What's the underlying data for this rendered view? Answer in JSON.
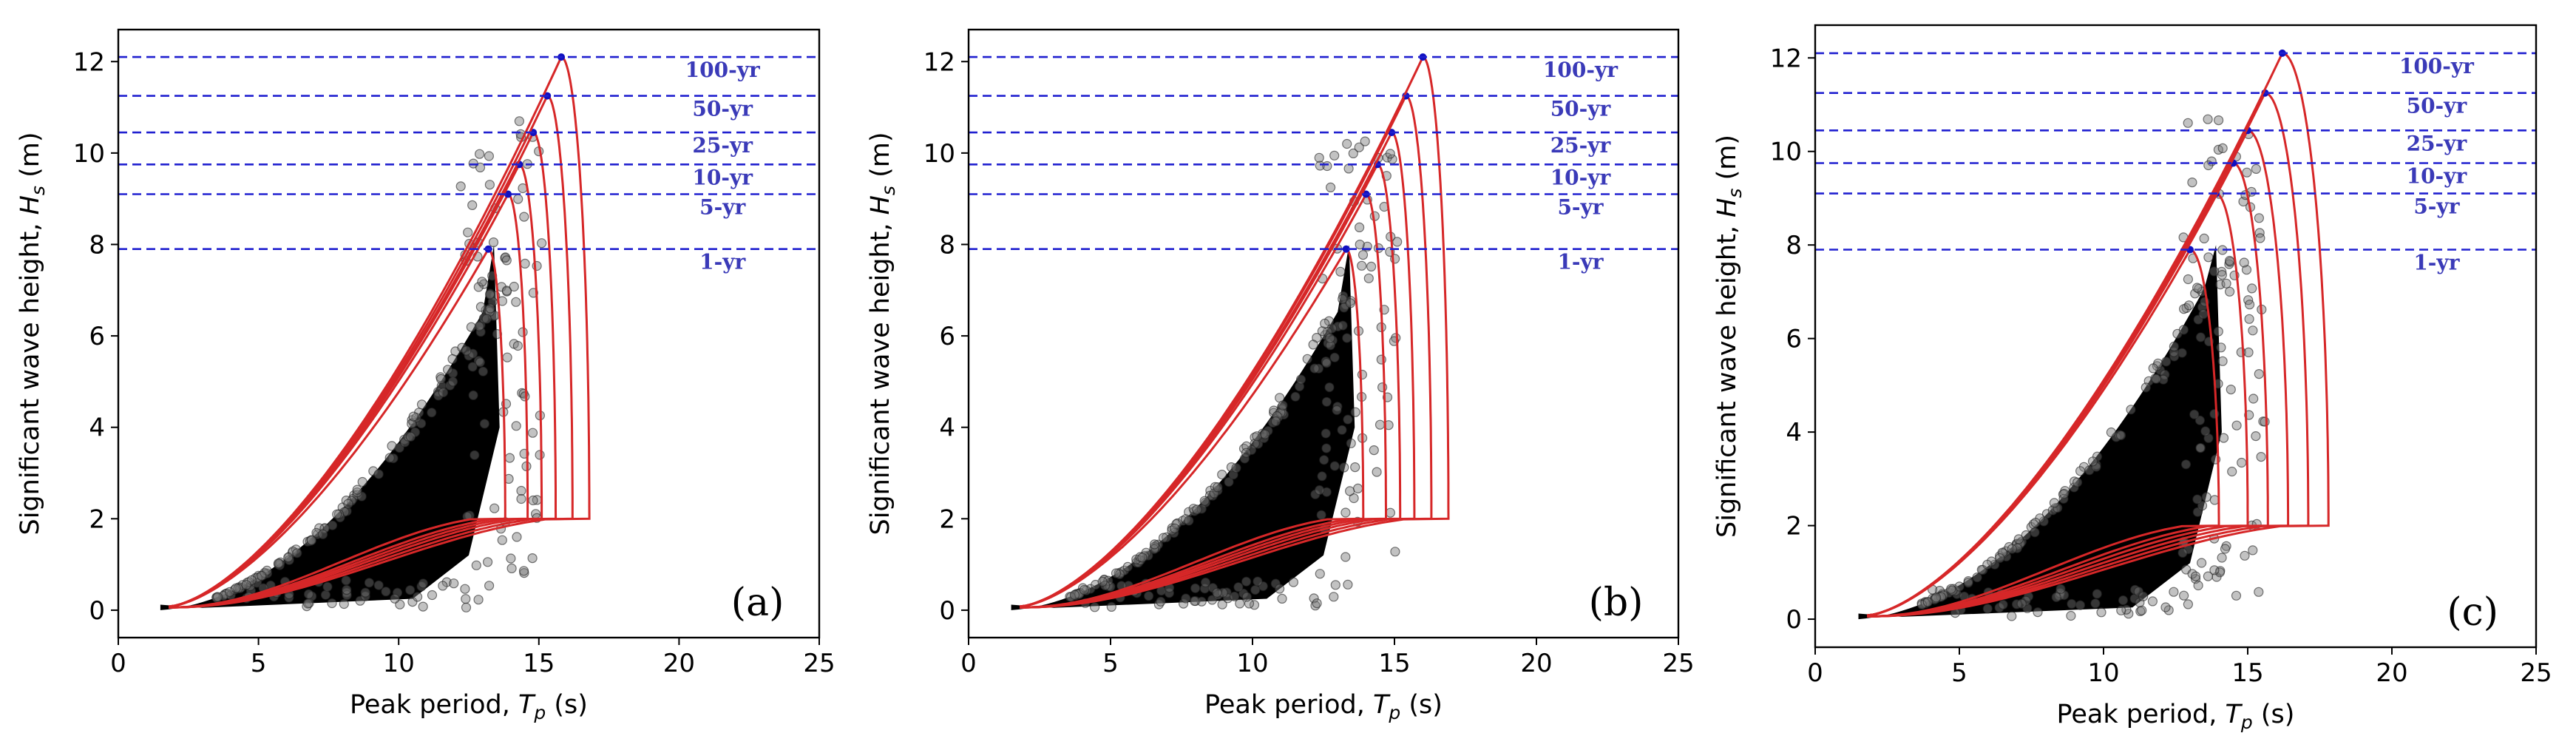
{
  "chart_data": [
    {
      "type": "scatter",
      "panel_label": "(a)",
      "xlabel": "Peak period, T_p (s)",
      "ylabel": "Significant wave height, H_s (m)",
      "xlim": [
        0,
        25
      ],
      "ylim": [
        -0.6,
        12.7
      ],
      "xticks": [
        0,
        5,
        10,
        15,
        20,
        25
      ],
      "yticks": [
        0,
        2,
        4,
        6,
        8,
        10,
        12
      ],
      "return_periods": [
        {
          "label": "1-yr",
          "hs": 7.9,
          "tp_peak": 13.2
        },
        {
          "label": "5-yr",
          "hs": 9.1,
          "tp_peak": 13.9
        },
        {
          "label": "10-yr",
          "hs": 9.75,
          "tp_peak": 14.3
        },
        {
          "label": "25-yr",
          "hs": 10.45,
          "tp_peak": 14.8
        },
        {
          "label": "50-yr",
          "hs": 11.25,
          "tp_peak": 15.3
        },
        {
          "label": "100-yr",
          "hs": 12.1,
          "tp_peak": 15.8
        }
      ],
      "contour_tp_max": [
        13.8,
        14.6,
        15.1,
        15.6,
        16.2,
        16.8
      ],
      "scatter_envelope": {
        "tp_min": 1.5,
        "tp_max_core": 13.0,
        "hs_max": 11.0,
        "outliers_tp": 14.5
      }
    },
    {
      "type": "scatter",
      "panel_label": "(b)",
      "xlabel": "Peak period, T_p (s)",
      "ylabel": "Significant wave height, H_s (m)",
      "xlim": [
        0,
        25
      ],
      "ylim": [
        -0.6,
        12.7
      ],
      "xticks": [
        0,
        5,
        10,
        15,
        20,
        25
      ],
      "yticks": [
        0,
        2,
        4,
        6,
        8,
        10,
        12
      ],
      "return_periods": [
        {
          "label": "1-yr",
          "hs": 7.9,
          "tp_peak": 13.3
        },
        {
          "label": "5-yr",
          "hs": 9.1,
          "tp_peak": 14.0
        },
        {
          "label": "10-yr",
          "hs": 9.75,
          "tp_peak": 14.4
        },
        {
          "label": "25-yr",
          "hs": 10.45,
          "tp_peak": 14.9
        },
        {
          "label": "50-yr",
          "hs": 11.25,
          "tp_peak": 15.4
        },
        {
          "label": "100-yr",
          "hs": 12.1,
          "tp_peak": 16.0
        }
      ],
      "contour_tp_max": [
        13.9,
        14.7,
        15.2,
        15.7,
        16.3,
        16.9
      ],
      "scatter_envelope": {
        "tp_min": 1.5,
        "tp_max_core": 13.0,
        "hs_max": 11.0,
        "outliers_tp": 14.5
      }
    },
    {
      "type": "scatter",
      "panel_label": "(c)",
      "xlabel": "Peak period, T_p (s)",
      "ylabel": "Significant wave height, H_s (m)",
      "xlim": [
        0,
        25
      ],
      "ylim": [
        -0.6,
        12.7
      ],
      "xticks": [
        0,
        5,
        10,
        15,
        20,
        25
      ],
      "yticks": [
        0,
        2,
        4,
        6,
        8,
        10,
        12
      ],
      "return_periods": [
        {
          "label": "1-yr",
          "hs": 7.9,
          "tp_peak": 13.0
        },
        {
          "label": "5-yr",
          "hs": 9.1,
          "tp_peak": 13.9
        },
        {
          "label": "10-yr",
          "hs": 9.75,
          "tp_peak": 14.5
        },
        {
          "label": "25-yr",
          "hs": 10.45,
          "tp_peak": 15.0
        },
        {
          "label": "50-yr",
          "hs": 11.25,
          "tp_peak": 15.6
        },
        {
          "label": "100-yr",
          "hs": 12.1,
          "tp_peak": 16.2
        }
      ],
      "contour_tp_max": [
        14.0,
        15.0,
        15.7,
        16.4,
        17.1,
        17.8
      ],
      "scatter_envelope": {
        "tp_min": 1.5,
        "tp_max_core": 13.5,
        "hs_max": 11.0,
        "outliers_tp": 15.0
      }
    }
  ],
  "colors": {
    "contour": "#d62728",
    "return_line": "#2020d0",
    "return_label": "#3a3ab8",
    "scatter": "#000000",
    "marker": "#1010c0"
  }
}
